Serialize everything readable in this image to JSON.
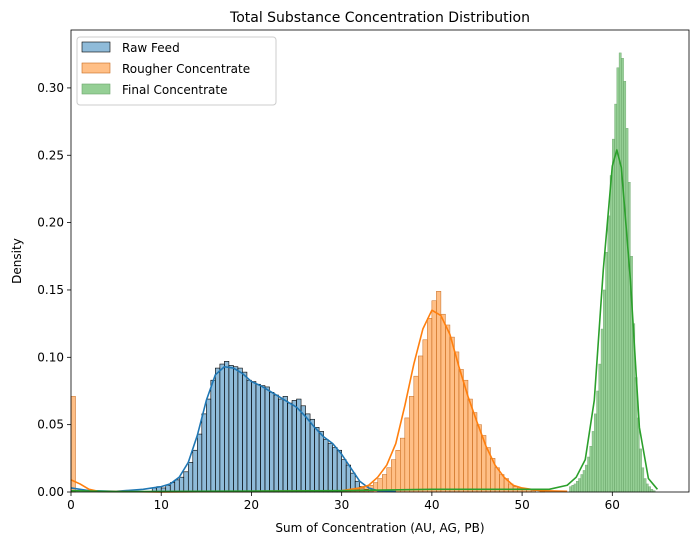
{
  "chart_data": {
    "type": "histogram",
    "title": "Total Substance Concentration Distribution",
    "xlabel": "Sum of Concentration (AU, AG, PB)",
    "ylabel": "Density",
    "xlim": [
      0,
      68.5
    ],
    "ylim": [
      0,
      0.343
    ],
    "xticks": [
      0,
      10,
      20,
      30,
      40,
      50,
      60
    ],
    "yticks": [
      0.0,
      0.05,
      0.1,
      0.15,
      0.2,
      0.25,
      0.3
    ],
    "ytick_labels": [
      "0.00",
      "0.05",
      "0.10",
      "0.15",
      "0.20",
      "0.25",
      "0.30"
    ],
    "grid": false,
    "legend_position": "top-left",
    "series": [
      {
        "name": "Raw Feed",
        "fill": "#1f77b4",
        "bin_width": 0.5,
        "kde": [
          [
            0,
            0.003
          ],
          [
            2,
            0.001
          ],
          [
            5,
            0.0005
          ],
          [
            8,
            0.002
          ],
          [
            9,
            0.003
          ],
          [
            10,
            0.004
          ],
          [
            11,
            0.006
          ],
          [
            12,
            0.011
          ],
          [
            13,
            0.022
          ],
          [
            14,
            0.042
          ],
          [
            15,
            0.068
          ],
          [
            16,
            0.087
          ],
          [
            17,
            0.093
          ],
          [
            18,
            0.092
          ],
          [
            19,
            0.088
          ],
          [
            20,
            0.082
          ],
          [
            21,
            0.079
          ],
          [
            22,
            0.075
          ],
          [
            23,
            0.071
          ],
          [
            24,
            0.067
          ],
          [
            25,
            0.063
          ],
          [
            26,
            0.056
          ],
          [
            27,
            0.048
          ],
          [
            28,
            0.041
          ],
          [
            29,
            0.036
          ],
          [
            30,
            0.028
          ],
          [
            31,
            0.018
          ],
          [
            32,
            0.008
          ],
          [
            33,
            0.003
          ],
          [
            34,
            0.001
          ],
          [
            36,
            0.0003
          ]
        ],
        "bars": [
          [
            9,
            0.003
          ],
          [
            9.5,
            0.004
          ],
          [
            10,
            0.003
          ],
          [
            10.5,
            0.005
          ],
          [
            11,
            0.007
          ],
          [
            11.5,
            0.009
          ],
          [
            12,
            0.011
          ],
          [
            12.5,
            0.015
          ],
          [
            13,
            0.022
          ],
          [
            13.5,
            0.031
          ],
          [
            14,
            0.043
          ],
          [
            14.5,
            0.058
          ],
          [
            15,
            0.069
          ],
          [
            15.5,
            0.083
          ],
          [
            16,
            0.092
          ],
          [
            16.5,
            0.095
          ],
          [
            17,
            0.097
          ],
          [
            17.5,
            0.094
          ],
          [
            18,
            0.093
          ],
          [
            18.5,
            0.092
          ],
          [
            19,
            0.089
          ],
          [
            19.5,
            0.083
          ],
          [
            20,
            0.082
          ],
          [
            20.5,
            0.08
          ],
          [
            21,
            0.079
          ],
          [
            21.5,
            0.078
          ],
          [
            22,
            0.074
          ],
          [
            22.5,
            0.072
          ],
          [
            23,
            0.069
          ],
          [
            23.5,
            0.071
          ],
          [
            24,
            0.066
          ],
          [
            24.5,
            0.068
          ],
          [
            25,
            0.069
          ],
          [
            25.5,
            0.064
          ],
          [
            26,
            0.058
          ],
          [
            26.5,
            0.054
          ],
          [
            27,
            0.048
          ],
          [
            27.5,
            0.045
          ],
          [
            28,
            0.039
          ],
          [
            28.5,
            0.036
          ],
          [
            29,
            0.033
          ],
          [
            29.5,
            0.031
          ],
          [
            30,
            0.024
          ],
          [
            30.5,
            0.02
          ],
          [
            31,
            0.014
          ],
          [
            31.5,
            0.008
          ],
          [
            32,
            0.004
          ],
          [
            32.5,
            0.002
          ],
          [
            33,
            0.001
          ]
        ]
      },
      {
        "name": "Rougher Concentrate",
        "fill": "#ff7f0e",
        "bin_width": 0.5,
        "kde": [
          [
            0,
            0.009
          ],
          [
            1,
            0.006
          ],
          [
            2,
            0.002
          ],
          [
            3,
            0.0005
          ],
          [
            10,
            0.0
          ],
          [
            30,
            0.001
          ],
          [
            31,
            0.002
          ],
          [
            32,
            0.003
          ],
          [
            33,
            0.005
          ],
          [
            34,
            0.011
          ],
          [
            35,
            0.02
          ],
          [
            36,
            0.036
          ],
          [
            37,
            0.064
          ],
          [
            38,
            0.095
          ],
          [
            39,
            0.121
          ],
          [
            40,
            0.135
          ],
          [
            41,
            0.131
          ],
          [
            42,
            0.117
          ],
          [
            43,
            0.093
          ],
          [
            44,
            0.071
          ],
          [
            45,
            0.052
          ],
          [
            46,
            0.034
          ],
          [
            47,
            0.02
          ],
          [
            48,
            0.011
          ],
          [
            49,
            0.005
          ],
          [
            50,
            0.003
          ],
          [
            52,
            0.001
          ],
          [
            55,
            0.0005
          ]
        ],
        "bars": [
          [
            0,
            0.071
          ],
          [
            30,
            0.001
          ],
          [
            30.5,
            0.001
          ],
          [
            31,
            0.002
          ],
          [
            31.5,
            0.002
          ],
          [
            32,
            0.003
          ],
          [
            32.5,
            0.004
          ],
          [
            33,
            0.005
          ],
          [
            33.5,
            0.007
          ],
          [
            34,
            0.01
          ],
          [
            34.5,
            0.013
          ],
          [
            35,
            0.018
          ],
          [
            35.5,
            0.024
          ],
          [
            36,
            0.031
          ],
          [
            36.5,
            0.04
          ],
          [
            37,
            0.055
          ],
          [
            37.5,
            0.071
          ],
          [
            38,
            0.086
          ],
          [
            38.5,
            0.101
          ],
          [
            39,
            0.113
          ],
          [
            39.5,
            0.129
          ],
          [
            40,
            0.142
          ],
          [
            40.5,
            0.149
          ],
          [
            41,
            0.132
          ],
          [
            41.5,
            0.124
          ],
          [
            42,
            0.115
          ],
          [
            42.5,
            0.104
          ],
          [
            43,
            0.091
          ],
          [
            43.5,
            0.083
          ],
          [
            44,
            0.069
          ],
          [
            44.5,
            0.059
          ],
          [
            45,
            0.05
          ],
          [
            45.5,
            0.042
          ],
          [
            46,
            0.033
          ],
          [
            46.5,
            0.025
          ],
          [
            47,
            0.018
          ],
          [
            47.5,
            0.013
          ],
          [
            48,
            0.01
          ],
          [
            48.5,
            0.006
          ],
          [
            49,
            0.004
          ],
          [
            49.5,
            0.003
          ],
          [
            50,
            0.002
          ],
          [
            50.5,
            0.002
          ],
          [
            51,
            0.001
          ],
          [
            52,
            0.001
          ]
        ]
      },
      {
        "name": "Final Concentrate",
        "fill": "#2ca02c",
        "bin_width": 0.25,
        "kde": [
          [
            0,
            0.001
          ],
          [
            5,
            0.0003
          ],
          [
            30,
            0.001
          ],
          [
            40,
            0.002
          ],
          [
            50,
            0.002
          ],
          [
            53,
            0.002
          ],
          [
            55,
            0.005
          ],
          [
            56,
            0.011
          ],
          [
            57,
            0.024
          ],
          [
            58,
            0.068
          ],
          [
            59,
            0.165
          ],
          [
            60,
            0.242
          ],
          [
            60.5,
            0.254
          ],
          [
            61,
            0.241
          ],
          [
            62,
            0.158
          ],
          [
            63,
            0.048
          ],
          [
            64,
            0.01
          ],
          [
            65,
            0.002
          ]
        ],
        "bars": [
          [
            55.25,
            0.004
          ],
          [
            55.5,
            0.005
          ],
          [
            55.75,
            0.006
          ],
          [
            56,
            0.008
          ],
          [
            56.25,
            0.01
          ],
          [
            56.5,
            0.013
          ],
          [
            56.75,
            0.016
          ],
          [
            57,
            0.02
          ],
          [
            57.25,
            0.026
          ],
          [
            57.5,
            0.034
          ],
          [
            57.75,
            0.045
          ],
          [
            58,
            0.058
          ],
          [
            58.25,
            0.075
          ],
          [
            58.5,
            0.095
          ],
          [
            58.75,
            0.121
          ],
          [
            59,
            0.15
          ],
          [
            59.25,
            0.178
          ],
          [
            59.5,
            0.205
          ],
          [
            59.75,
            0.235
          ],
          [
            60,
            0.262
          ],
          [
            60.25,
            0.288
          ],
          [
            60.5,
            0.315
          ],
          [
            60.75,
            0.326
          ],
          [
            61,
            0.322
          ],
          [
            61.25,
            0.305
          ],
          [
            61.5,
            0.27
          ],
          [
            61.75,
            0.23
          ],
          [
            62,
            0.175
          ],
          [
            62.25,
            0.125
          ],
          [
            62.5,
            0.085
          ],
          [
            62.75,
            0.055
          ],
          [
            63,
            0.032
          ],
          [
            63.25,
            0.018
          ],
          [
            63.5,
            0.01
          ],
          [
            63.75,
            0.006
          ],
          [
            64,
            0.004
          ],
          [
            64.25,
            0.002
          ],
          [
            64.5,
            0.001
          ]
        ]
      }
    ]
  }
}
